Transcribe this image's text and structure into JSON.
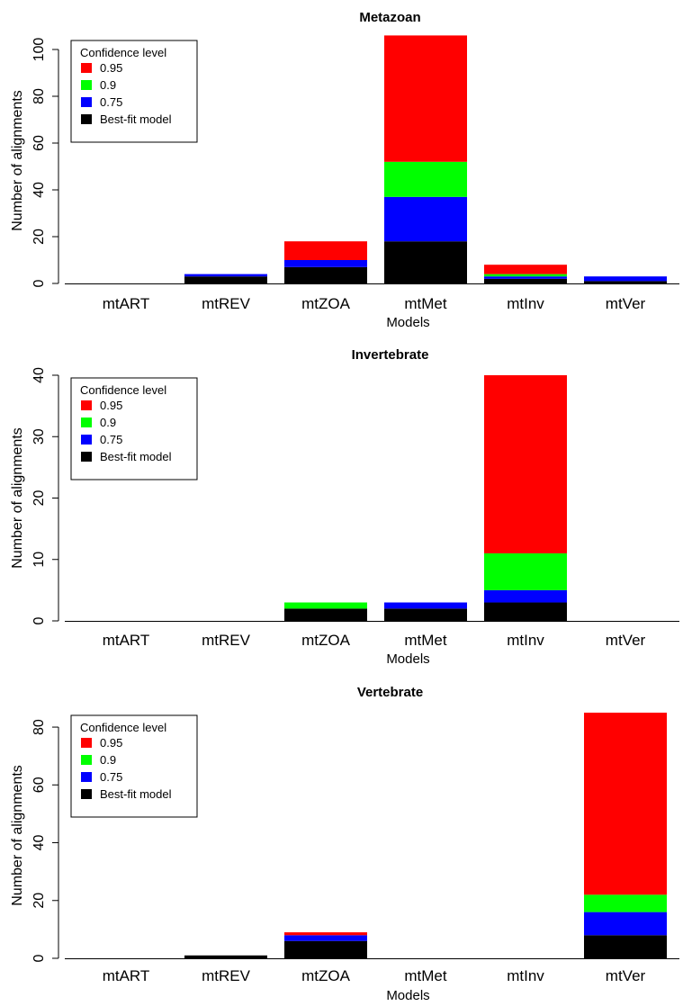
{
  "chart_data": [
    {
      "type": "bar",
      "stacked": true,
      "title": "Metazoan",
      "xlabel": "Models",
      "ylabel": "Number of alignments",
      "ylim": [
        0,
        105
      ],
      "yticks": [
        0,
        20,
        40,
        60,
        80,
        100
      ],
      "categories": [
        "mtART",
        "mtREV",
        "mtZOA",
        "mtMet",
        "mtInv",
        "mtVer"
      ],
      "legend": {
        "title": "Confidence level",
        "position": "top-left",
        "entries": [
          {
            "label": "0.95",
            "color": "#ff0000"
          },
          {
            "label": "0.9",
            "color": "#00ff00"
          },
          {
            "label": "0.75",
            "color": "#0000ff"
          },
          {
            "label": "Best-fit model",
            "color": "#000000"
          }
        ]
      },
      "series": [
        {
          "name": "Best-fit model",
          "color": "#000000",
          "values": [
            0,
            3,
            7,
            18,
            2,
            1
          ]
        },
        {
          "name": "0.75",
          "color": "#0000ff",
          "values": [
            0,
            1,
            3,
            19,
            1,
            2
          ]
        },
        {
          "name": "0.9",
          "color": "#00ff00",
          "values": [
            0,
            0,
            0,
            15,
            1,
            0
          ]
        },
        {
          "name": "0.95",
          "color": "#ff0000",
          "values": [
            0,
            0,
            8,
            54,
            4,
            0
          ]
        }
      ]
    },
    {
      "type": "bar",
      "stacked": true,
      "title": "Invertebrate",
      "xlabel": "Models",
      "ylabel": "Number of alignments",
      "ylim": [
        0,
        40
      ],
      "yticks": [
        0,
        10,
        20,
        30,
        40
      ],
      "categories": [
        "mtART",
        "mtREV",
        "mtZOA",
        "mtMet",
        "mtInv",
        "mtVer"
      ],
      "legend": {
        "title": "Confidence level",
        "position": "top-left",
        "entries": [
          {
            "label": "0.95",
            "color": "#ff0000"
          },
          {
            "label": "0.9",
            "color": "#00ff00"
          },
          {
            "label": "0.75",
            "color": "#0000ff"
          },
          {
            "label": "Best-fit model",
            "color": "#000000"
          }
        ]
      },
      "series": [
        {
          "name": "Best-fit model",
          "color": "#000000",
          "values": [
            0,
            0,
            2,
            2,
            3,
            0
          ]
        },
        {
          "name": "0.75",
          "color": "#0000ff",
          "values": [
            0,
            0,
            0,
            1,
            2,
            0
          ]
        },
        {
          "name": "0.9",
          "color": "#00ff00",
          "values": [
            0,
            0,
            1,
            0,
            6,
            0
          ]
        },
        {
          "name": "0.95",
          "color": "#ff0000",
          "values": [
            0,
            0,
            0,
            0,
            29,
            0
          ]
        }
      ]
    },
    {
      "type": "bar",
      "stacked": true,
      "title": "Vertebrate",
      "xlabel": "Models",
      "ylabel": "Number of alignments",
      "ylim": [
        0,
        85
      ],
      "yticks": [
        0,
        20,
        40,
        60,
        80
      ],
      "categories": [
        "mtART",
        "mtREV",
        "mtZOA",
        "mtMet",
        "mtInv",
        "mtVer"
      ],
      "legend": {
        "title": "Confidence level",
        "position": "top-left",
        "entries": [
          {
            "label": "0.95",
            "color": "#ff0000"
          },
          {
            "label": "0.9",
            "color": "#00ff00"
          },
          {
            "label": "0.75",
            "color": "#0000ff"
          },
          {
            "label": "Best-fit model",
            "color": "#000000"
          }
        ]
      },
      "series": [
        {
          "name": "Best-fit model",
          "color": "#000000",
          "values": [
            0,
            1,
            6,
            0,
            0,
            8
          ]
        },
        {
          "name": "0.75",
          "color": "#0000ff",
          "values": [
            0,
            0,
            2,
            0,
            0,
            8
          ]
        },
        {
          "name": "0.9",
          "color": "#00ff00",
          "values": [
            0,
            0,
            0,
            0,
            0,
            6
          ]
        },
        {
          "name": "0.95",
          "color": "#ff0000",
          "values": [
            0,
            0,
            1,
            0,
            0,
            63
          ]
        }
      ]
    }
  ]
}
